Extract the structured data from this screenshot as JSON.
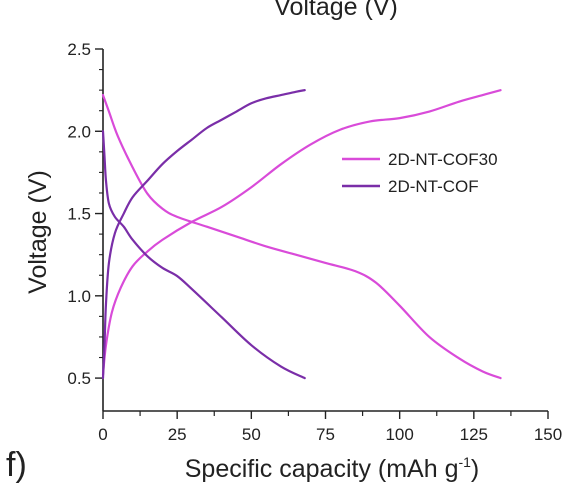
{
  "panel_label": "f)",
  "top_partial_title": "Voltage (V)",
  "chart_data": {
    "type": "line",
    "title": "",
    "xlabel": "Specific capacity (mAh g",
    "xlabel_sup": "-1",
    "xlabel_close": ")",
    "ylabel": "Voltage (V)",
    "xlim": [
      0,
      150
    ],
    "ylim": [
      0.3,
      2.5
    ],
    "xticks": [
      0,
      25,
      50,
      75,
      100,
      125,
      150
    ],
    "yticks": [
      0.5,
      1.0,
      1.5,
      2.0,
      2.5
    ],
    "ytick_labels": [
      "0.5",
      "1.0",
      "1.5",
      "2.0",
      "2.5"
    ],
    "grid": false,
    "legend_position": "right",
    "series": [
      {
        "name": "2D-NT-COF30",
        "color": "#d94bd9",
        "discharge": [
          [
            0,
            2.22
          ],
          [
            2,
            2.12
          ],
          [
            5,
            1.97
          ],
          [
            10,
            1.78
          ],
          [
            15,
            1.62
          ],
          [
            20,
            1.53
          ],
          [
            25,
            1.48
          ],
          [
            35,
            1.42
          ],
          [
            45,
            1.36
          ],
          [
            55,
            1.3
          ],
          [
            65,
            1.25
          ],
          [
            75,
            1.2
          ],
          [
            85,
            1.15
          ],
          [
            92,
            1.08
          ],
          [
            100,
            0.94
          ],
          [
            110,
            0.75
          ],
          [
            120,
            0.62
          ],
          [
            128,
            0.54
          ],
          [
            134,
            0.5
          ]
        ],
        "charge": [
          [
            0,
            0.52
          ],
          [
            1,
            0.7
          ],
          [
            3,
            0.9
          ],
          [
            6,
            1.05
          ],
          [
            10,
            1.18
          ],
          [
            15,
            1.27
          ],
          [
            20,
            1.34
          ],
          [
            30,
            1.45
          ],
          [
            40,
            1.54
          ],
          [
            50,
            1.66
          ],
          [
            60,
            1.8
          ],
          [
            70,
            1.92
          ],
          [
            80,
            2.01
          ],
          [
            90,
            2.06
          ],
          [
            100,
            2.08
          ],
          [
            110,
            2.12
          ],
          [
            120,
            2.18
          ],
          [
            128,
            2.22
          ],
          [
            134,
            2.25
          ]
        ]
      },
      {
        "name": "2D-NT-COF",
        "color": "#7a2ea8",
        "discharge": [
          [
            0,
            2.0
          ],
          [
            0.5,
            1.85
          ],
          [
            1,
            1.7
          ],
          [
            2,
            1.56
          ],
          [
            4,
            1.48
          ],
          [
            7,
            1.42
          ],
          [
            10,
            1.34
          ],
          [
            15,
            1.24
          ],
          [
            20,
            1.17
          ],
          [
            25,
            1.12
          ],
          [
            30,
            1.04
          ],
          [
            40,
            0.87
          ],
          [
            50,
            0.7
          ],
          [
            60,
            0.57
          ],
          [
            68,
            0.5
          ]
        ],
        "charge": [
          [
            0,
            0.5
          ],
          [
            0.5,
            0.7
          ],
          [
            1,
            0.95
          ],
          [
            2,
            1.2
          ],
          [
            4,
            1.38
          ],
          [
            7,
            1.5
          ],
          [
            10,
            1.6
          ],
          [
            15,
            1.7
          ],
          [
            20,
            1.8
          ],
          [
            25,
            1.88
          ],
          [
            30,
            1.95
          ],
          [
            35,
            2.02
          ],
          [
            40,
            2.07
          ],
          [
            45,
            2.12
          ],
          [
            50,
            2.17
          ],
          [
            55,
            2.2
          ],
          [
            60,
            2.22
          ],
          [
            65,
            2.24
          ],
          [
            68,
            2.25
          ]
        ]
      }
    ]
  }
}
